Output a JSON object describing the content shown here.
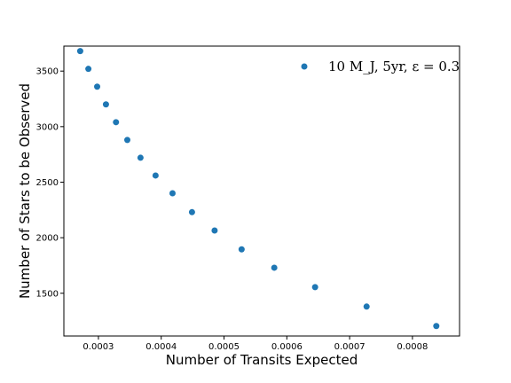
{
  "chart_data": {
    "type": "scatter",
    "title": "",
    "xlabel": "Number of Transits Expected",
    "ylabel": "Number of Stars to be Observed",
    "xlim": [
      0.000245,
      0.000875
    ],
    "ylim": [
      1115,
      3725
    ],
    "xticks": [
      0.0003,
      0.0004,
      0.0005,
      0.0006,
      0.0007,
      0.0008
    ],
    "xtick_labels": [
      "0.0003",
      "0.0004",
      "0.0005",
      "0.0006",
      "0.0007",
      "0.0008"
    ],
    "yticks": [
      1500,
      2000,
      2500,
      3000,
      3500
    ],
    "ytick_labels": [
      "1500",
      "2000",
      "2500",
      "3000",
      "3500"
    ],
    "grid": false,
    "legend_position": "top-right",
    "series": [
      {
        "name": "10 M_J, 5yr, ε = 0.3",
        "color": "#1f77b4",
        "x": [
          0.000271,
          0.000284,
          0.000298,
          0.000312,
          0.000328,
          0.000346,
          0.000367,
          0.000391,
          0.000418,
          0.000449,
          0.000485,
          0.000528,
          0.00058,
          0.000645,
          0.000727,
          0.000838
        ],
        "y": [
          3680,
          3520,
          3360,
          3200,
          3040,
          2880,
          2720,
          2560,
          2400,
          2230,
          2065,
          1895,
          1730,
          1555,
          1380,
          1205
        ]
      }
    ]
  }
}
